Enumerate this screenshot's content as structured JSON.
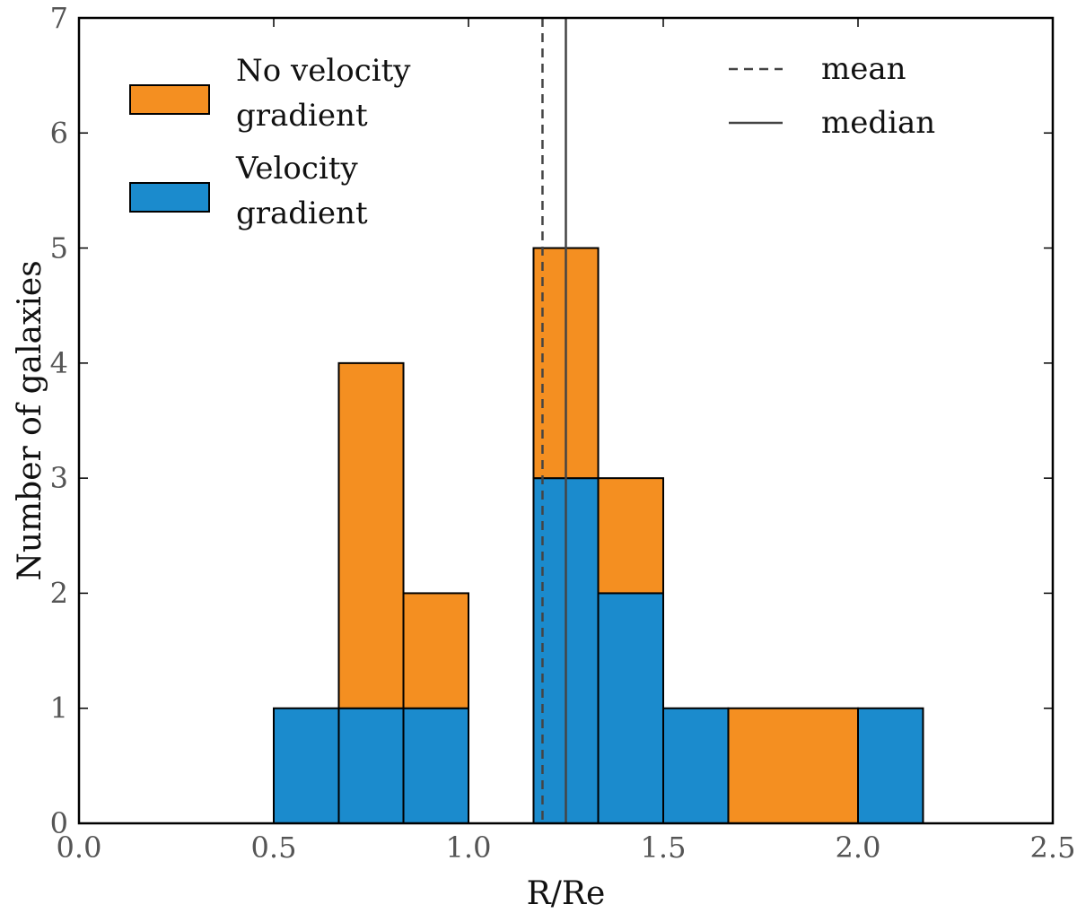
{
  "chart_data": {
    "type": "bar",
    "subtype": "stacked-histogram",
    "xlabel": "R/Re",
    "ylabel": "Number of galaxies",
    "xlim": [
      0.0,
      2.5
    ],
    "ylim": [
      0,
      7
    ],
    "xticks": [
      0.0,
      0.5,
      1.0,
      1.5,
      2.0,
      2.5
    ],
    "xtick_labels": [
      "0.0",
      "0.5",
      "1.0",
      "1.5",
      "2.0",
      "2.5"
    ],
    "yticks": [
      0,
      1,
      2,
      3,
      4,
      5,
      6,
      7
    ],
    "ytick_labels": [
      "0",
      "1",
      "2",
      "3",
      "4",
      "5",
      "6",
      "7"
    ],
    "grid": false,
    "colors": {
      "velocity_gradient": "#1b8bcd",
      "no_velocity_gradient": "#f48f21",
      "edge": "#000000",
      "reference_line": "#444444"
    },
    "series": [
      {
        "name": "Velocity gradient",
        "legend_lines": [
          "Velocity",
          "gradient"
        ],
        "color": "#1b8bcd",
        "bins": [
          {
            "x0": 0.5,
            "x1": 0.667,
            "value": 1
          },
          {
            "x0": 0.667,
            "x1": 0.833,
            "value": 1
          },
          {
            "x0": 0.833,
            "x1": 1.0,
            "value": 1
          },
          {
            "x0": 1.167,
            "x1": 1.333,
            "value": 3
          },
          {
            "x0": 1.333,
            "x1": 1.5,
            "value": 2
          },
          {
            "x0": 1.5,
            "x1": 1.667,
            "value": 1
          },
          {
            "x0": 2.0,
            "x1": 2.167,
            "value": 1
          }
        ]
      },
      {
        "name": "No velocity gradient",
        "legend_lines": [
          "No velocity",
          "gradient"
        ],
        "color": "#f48f21",
        "bins": [
          {
            "x0": 0.667,
            "x1": 0.833,
            "base": 1,
            "value": 3
          },
          {
            "x0": 0.833,
            "x1": 1.0,
            "base": 1,
            "value": 1
          },
          {
            "x0": 1.167,
            "x1": 1.333,
            "base": 3,
            "value": 2
          },
          {
            "x0": 1.333,
            "x1": 1.5,
            "base": 2,
            "value": 1
          },
          {
            "x0": 1.667,
            "x1": 2.0,
            "base": 0,
            "value": 1
          }
        ]
      }
    ],
    "reference_lines": [
      {
        "name": "mean",
        "x": 1.19,
        "style": "dashed"
      },
      {
        "name": "median",
        "x": 1.25,
        "style": "solid"
      }
    ],
    "legend": {
      "left": {
        "placement": "top-left",
        "entries": [
          {
            "lines": [
              "No velocity",
              "gradient"
            ],
            "color": "#f48f21"
          },
          {
            "lines": [
              "Velocity",
              "gradient"
            ],
            "color": "#1b8bcd"
          }
        ]
      },
      "right": {
        "placement": "top-right",
        "entries": [
          {
            "label": "mean",
            "style": "dashed"
          },
          {
            "label": "median",
            "style": "solid"
          }
        ]
      }
    }
  }
}
